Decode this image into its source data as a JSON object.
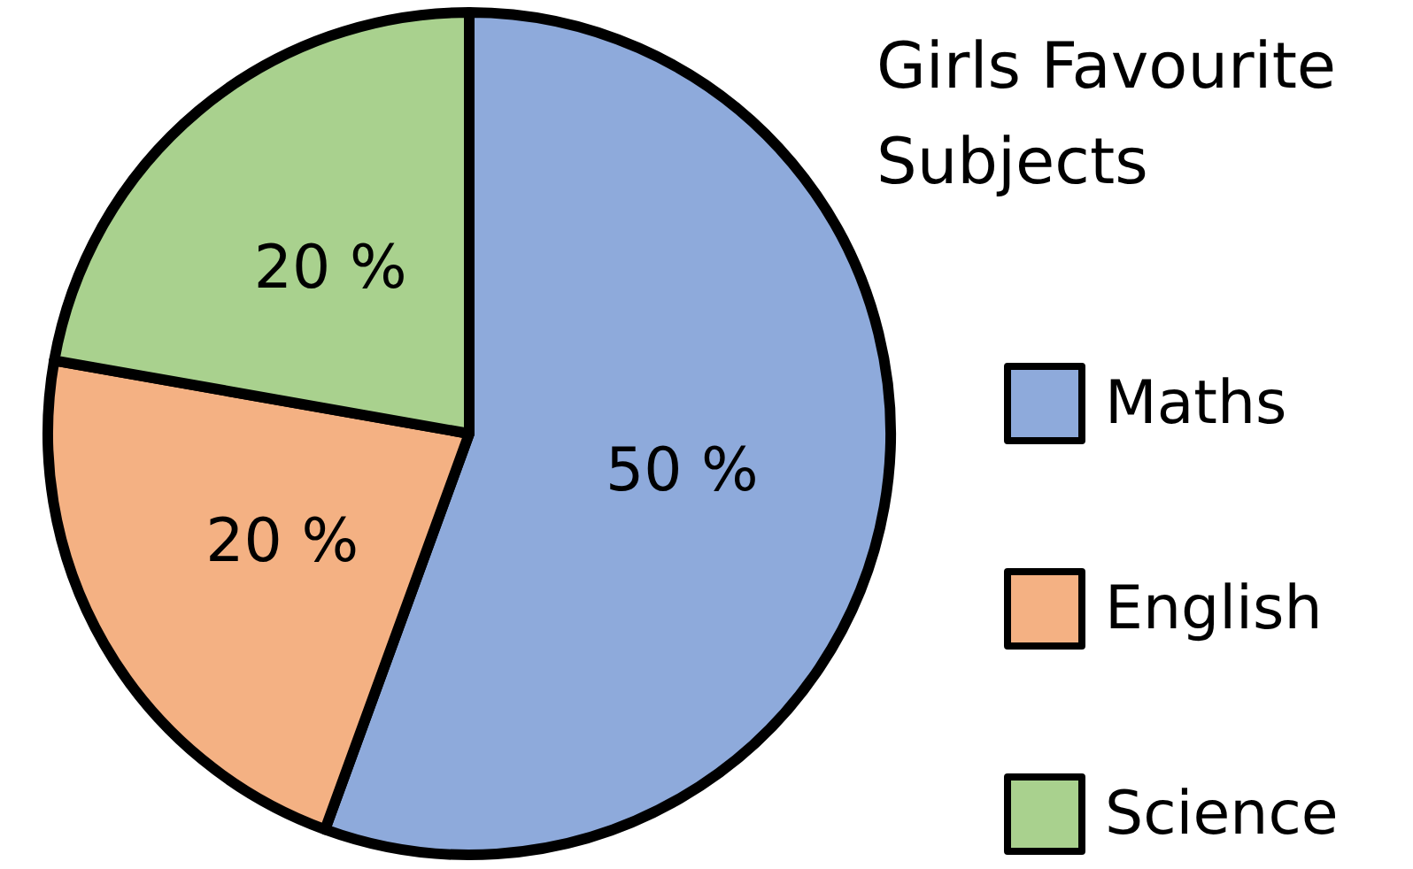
{
  "chart_data": {
    "type": "pie",
    "title": "Girls Favourite Subjects",
    "categories": [
      "Maths",
      "English",
      "Science"
    ],
    "values": [
      50,
      20,
      20
    ],
    "colors": [
      "#8eaadb",
      "#f4b183",
      "#a9d18e"
    ],
    "value_labels": [
      "50 %",
      "20 %",
      "20 %"
    ],
    "legend": "right"
  }
}
